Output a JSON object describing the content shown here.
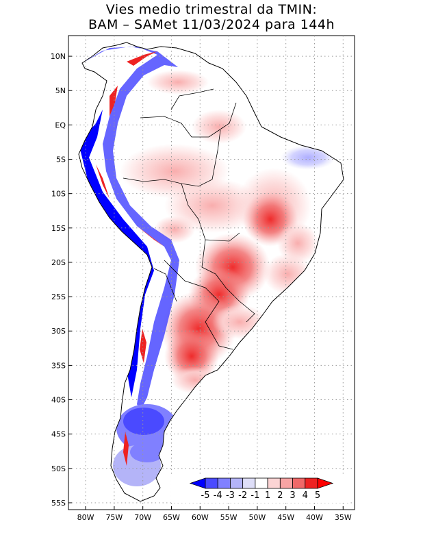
{
  "title": {
    "line1": "Vies medio trimestral da TMIN:",
    "line2": "BAM – SAMet 11/03/2024  para 144h"
  },
  "axes": {
    "lat_labels": [
      "10N",
      "5N",
      "EQ",
      "5S",
      "10S",
      "15S",
      "20S",
      "25S",
      "30S",
      "35S",
      "40S",
      "45S",
      "50S",
      "55S"
    ],
    "lon_labels": [
      "80W",
      "75W",
      "70W",
      "65W",
      "60W",
      "55W",
      "50W",
      "45W",
      "40W",
      "35W"
    ],
    "lat_values": [
      10,
      5,
      0,
      -5,
      -10,
      -15,
      -20,
      -25,
      -30,
      -35,
      -40,
      -45,
      -50,
      -55
    ],
    "lon_values": [
      -80,
      -75,
      -70,
      -65,
      -60,
      -55,
      -50,
      -45,
      -40,
      -35
    ],
    "lon_range": [
      -83,
      -33
    ],
    "lat_range": [
      -56,
      13
    ],
    "grid": "dotted"
  },
  "colorbar": {
    "labels": [
      "-5",
      "-4",
      "-3",
      "-2",
      "-1",
      "1",
      "2",
      "3",
      "4",
      "5"
    ],
    "colors": [
      "#0000ff",
      "#4a4aff",
      "#8080ff",
      "#b4b4f8",
      "#dedef8",
      "#ffffff",
      "#fcd4d4",
      "#f8a4a4",
      "#f06868",
      "#ee2222",
      "#ff0000"
    ],
    "placement": "bottom-right"
  }
}
